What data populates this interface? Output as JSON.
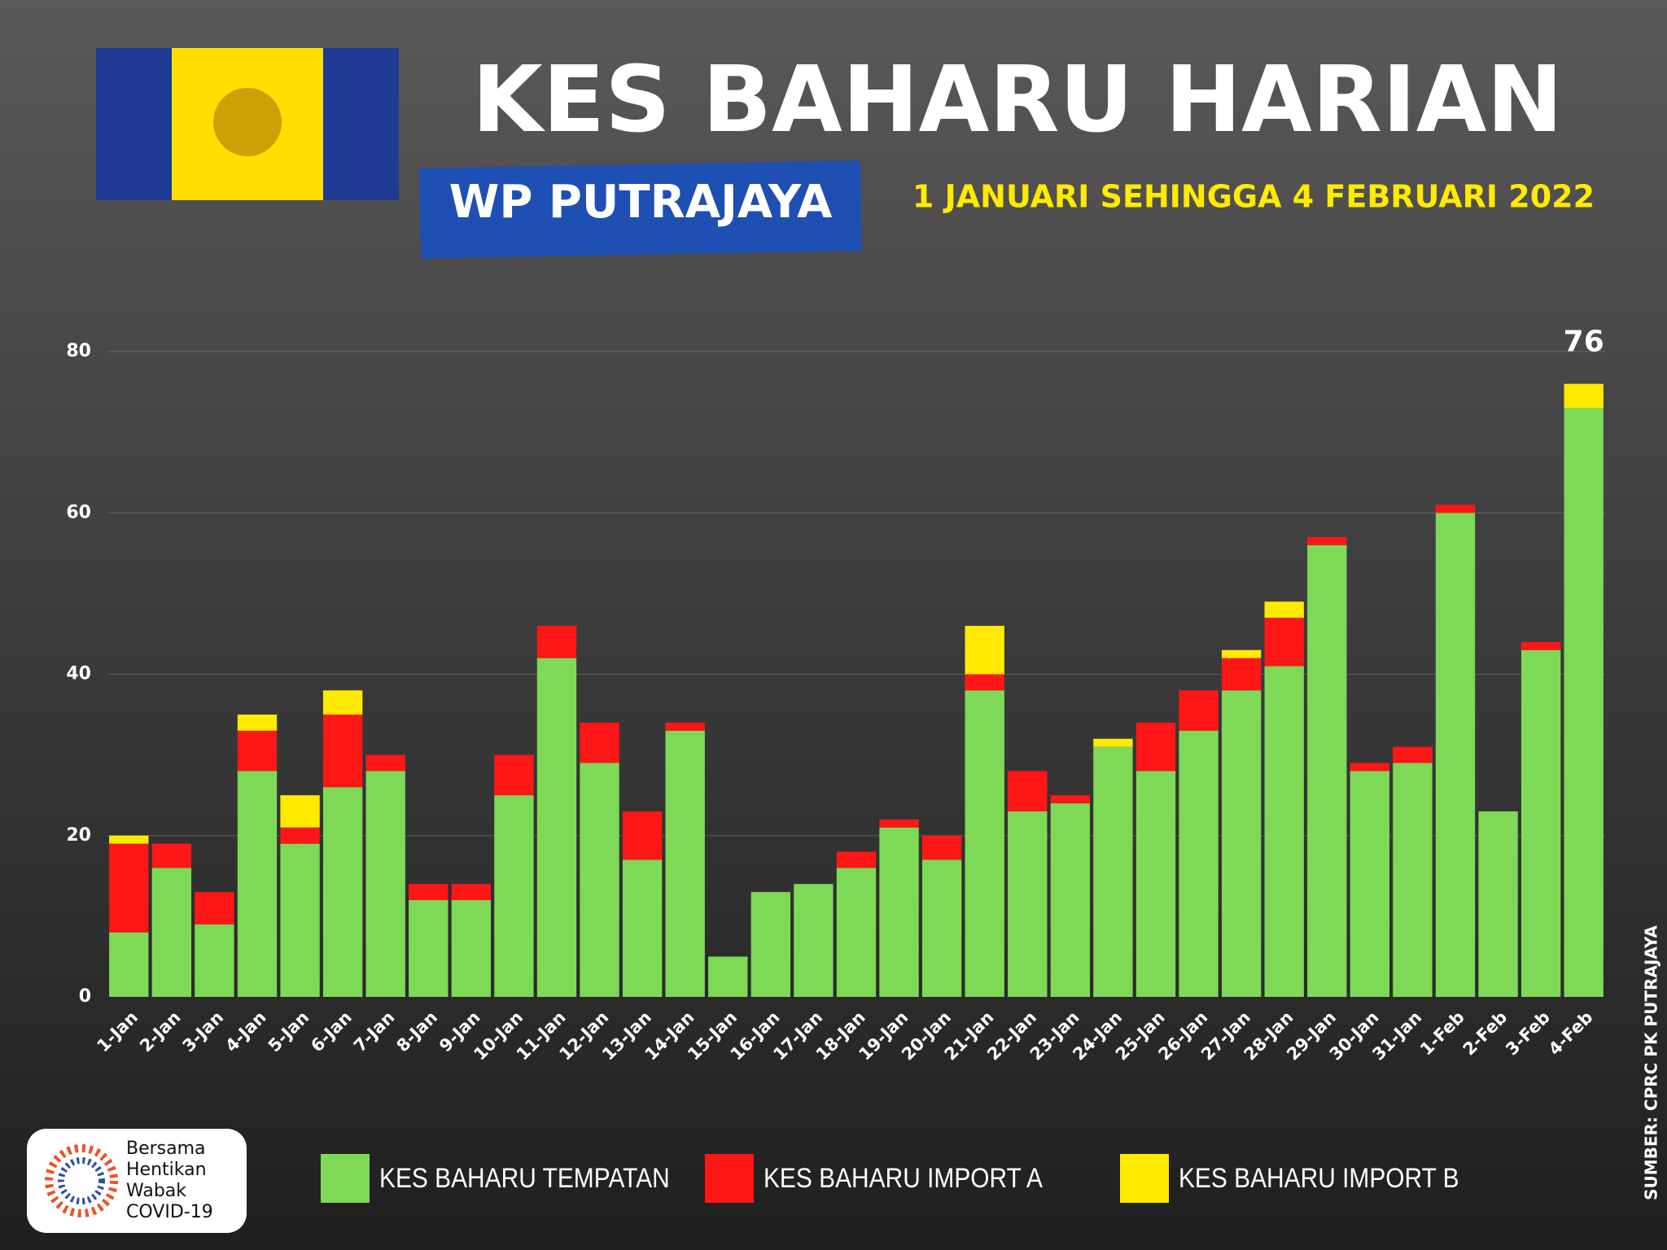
{
  "header": {
    "title": "KES BAHARU HARIAN",
    "region": "WP PUTRAJAYA",
    "period": "1 JANUARI SEHINGGA 4 FEBRUARI 2022"
  },
  "source": "SUMBER: CPRC PK PUTRAJAYA",
  "logo": {
    "lines": [
      "Bersama",
      "Hentikan",
      "Wabak",
      "COVID-19"
    ]
  },
  "chart_data": {
    "type": "stacked-bar",
    "categories": [
      "1-Jan",
      "2-Jan",
      "3-Jan",
      "4-Jan",
      "5-Jan",
      "6-Jan",
      "7-Jan",
      "8-Jan",
      "9-Jan",
      "10-Jan",
      "11-Jan",
      "12-Jan",
      "13-Jan",
      "14-Jan",
      "15-Jan",
      "16-Jan",
      "17-Jan",
      "18-Jan",
      "19-Jan",
      "20-Jan",
      "21-Jan",
      "22-Jan",
      "23-Jan",
      "24-Jan",
      "25-Jan",
      "26-Jan",
      "27-Jan",
      "28-Jan",
      "29-Jan",
      "30-Jan",
      "31-Jan",
      "1-Feb",
      "2-Feb",
      "3-Feb",
      "4-Feb"
    ],
    "series": [
      {
        "name": "KES BAHARU TEMPATAN",
        "color": "#7ed957",
        "values": [
          8,
          16,
          9,
          28,
          19,
          26,
          28,
          12,
          12,
          25,
          42,
          29,
          17,
          33,
          5,
          13,
          14,
          16,
          21,
          17,
          38,
          23,
          24,
          31,
          28,
          33,
          38,
          41,
          56,
          28,
          29,
          60,
          23,
          43,
          73
        ]
      },
      {
        "name": "KES BAHARU IMPORT A",
        "color": "#ff1616",
        "values": [
          11,
          3,
          4,
          5,
          2,
          9,
          2,
          2,
          2,
          5,
          4,
          5,
          6,
          1,
          0,
          0,
          0,
          2,
          1,
          3,
          2,
          5,
          1,
          0,
          6,
          5,
          4,
          6,
          1,
          1,
          2,
          1,
          0,
          1,
          0
        ]
      },
      {
        "name": "KES BAHARU IMPORT B",
        "color": "#ffea00",
        "values": [
          1,
          0,
          0,
          2,
          4,
          3,
          0,
          0,
          0,
          0,
          0,
          0,
          0,
          0,
          0,
          0,
          0,
          0,
          0,
          0,
          6,
          0,
          0,
          1,
          0,
          0,
          1,
          2,
          0,
          0,
          0,
          0,
          0,
          0,
          3
        ]
      }
    ],
    "annotations": [
      {
        "x": "4-Feb",
        "label": "76",
        "value": 76
      }
    ],
    "ylim": [
      0,
      80
    ],
    "yticks": [
      0,
      20,
      40,
      60,
      80
    ],
    "grid": true
  }
}
